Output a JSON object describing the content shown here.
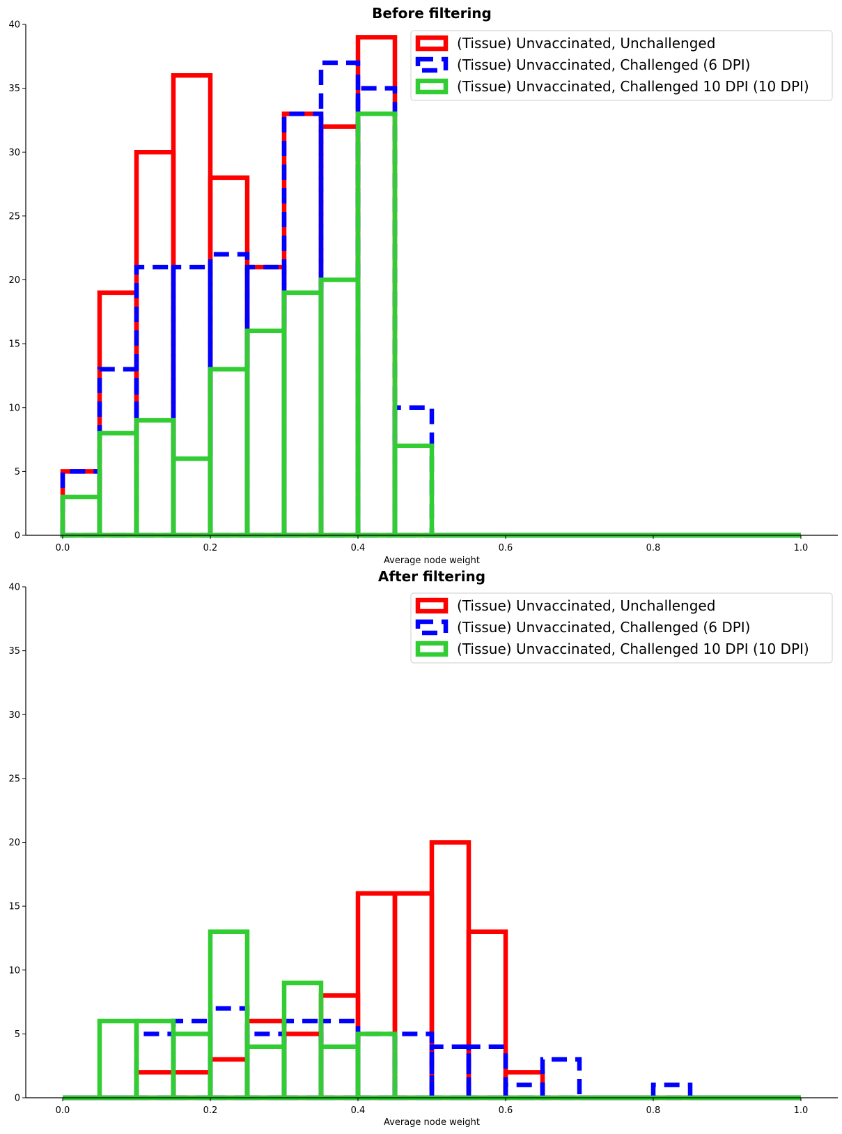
{
  "chart_data": [
    {
      "type": "histogram",
      "title": "Before filtering",
      "xlabel": "Average node weight",
      "ylabel": "",
      "xlim": [
        -0.05,
        1.05
      ],
      "ylim": [
        0,
        40
      ],
      "xticks": [
        "0.0",
        "0.2",
        "0.4",
        "0.6",
        "0.8",
        "1.0"
      ],
      "yticks": [
        "0",
        "5",
        "10",
        "15",
        "20",
        "25",
        "30",
        "35",
        "40"
      ],
      "bin_edges": [
        0.0,
        0.05,
        0.1,
        0.15,
        0.2,
        0.25,
        0.3,
        0.35,
        0.4,
        0.45,
        0.5,
        0.55,
        0.6,
        0.65,
        0.7,
        0.75,
        0.8,
        0.85,
        0.9,
        0.95,
        1.0
      ],
      "legend_position": "top-right",
      "series": [
        {
          "name": "(Tissue) Unvaccinated, Unchallenged",
          "color": "#ff0000",
          "style": "solid",
          "values": [
            5,
            19,
            30,
            36,
            28,
            21,
            33,
            32,
            39,
            0,
            0,
            0,
            0,
            0,
            0,
            0,
            0,
            0,
            0,
            0
          ]
        },
        {
          "name": "(Tissue) Unvaccinated, Challenged (6 DPI)",
          "color": "#0000ff",
          "style": "dashed",
          "values": [
            5,
            13,
            21,
            21,
            22,
            21,
            33,
            37,
            35,
            10,
            0,
            0,
            0,
            0,
            0,
            0,
            0,
            0,
            0,
            0
          ]
        },
        {
          "name": "(Tissue) Unvaccinated, Challenged 10 DPI (10 DPI)",
          "color": "#32cd32",
          "style": "solid",
          "values": [
            3,
            8,
            9,
            6,
            13,
            16,
            19,
            20,
            33,
            7,
            0,
            0,
            0,
            0,
            0,
            0,
            0,
            0,
            0,
            0
          ]
        }
      ]
    },
    {
      "type": "histogram",
      "title": "After filtering",
      "xlabel": "Average node weight",
      "ylabel": "",
      "xlim": [
        -0.05,
        1.05
      ],
      "ylim": [
        0,
        40
      ],
      "xticks": [
        "0.0",
        "0.2",
        "0.4",
        "0.6",
        "0.8",
        "1.0"
      ],
      "yticks": [
        "0",
        "5",
        "10",
        "15",
        "20",
        "25",
        "30",
        "35",
        "40"
      ],
      "bin_edges": [
        0.0,
        0.05,
        0.1,
        0.15,
        0.2,
        0.25,
        0.3,
        0.35,
        0.4,
        0.45,
        0.5,
        0.55,
        0.6,
        0.65,
        0.7,
        0.75,
        0.8,
        0.85,
        0.9,
        0.95,
        1.0
      ],
      "legend_position": "top-right",
      "series": [
        {
          "name": "(Tissue) Unvaccinated, Unchallenged",
          "color": "#ff0000",
          "style": "solid",
          "values": [
            0,
            0,
            2,
            2,
            3,
            6,
            5,
            8,
            16,
            16,
            20,
            13,
            2,
            0,
            0,
            0,
            0,
            0,
            0,
            0
          ]
        },
        {
          "name": "(Tissue) Unvaccinated, Challenged (6 DPI)",
          "color": "#0000ff",
          "style": "dashed",
          "values": [
            0,
            0,
            5,
            6,
            7,
            5,
            6,
            6,
            5,
            5,
            4,
            4,
            1,
            3,
            0,
            0,
            1,
            0,
            0,
            0
          ]
        },
        {
          "name": "(Tissue) Unvaccinated, Challenged 10 DPI (10 DPI)",
          "color": "#32cd32",
          "style": "solid",
          "values": [
            0,
            6,
            6,
            5,
            13,
            4,
            9,
            4,
            5,
            0,
            0,
            0,
            0,
            0,
            0,
            0,
            0,
            0,
            0,
            0
          ]
        }
      ]
    }
  ]
}
